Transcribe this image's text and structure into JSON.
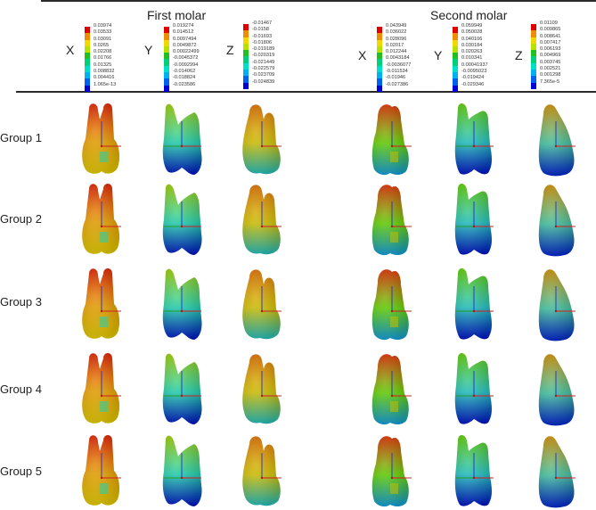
{
  "header": {
    "first_molar": "First molar",
    "second_molar": "Second molar"
  },
  "axes": [
    "X",
    "Y",
    "Z"
  ],
  "legends": {
    "first_molar": {
      "X": [
        "0.03974",
        "0.03533",
        "0.03091",
        "0.0265",
        "0.02208",
        "0.01766",
        "0.01325",
        "0.008832",
        "0.004416",
        "1.065e-13"
      ],
      "Y": [
        "0.019274",
        "0.014512",
        "0.0097494",
        "0.0049872",
        "0.00022499",
        "-0.0045372",
        "-0.0092994",
        "-0.014062",
        "-0.018824",
        "-0.023586"
      ],
      "Z": [
        "-0.01467",
        "-0.0158",
        "-0.01693",
        "-0.01806",
        "-0.019189",
        "-0.020319",
        "-0.021449",
        "-0.022579",
        "-0.023709",
        "-0.024839"
      ]
    },
    "second_molar": {
      "X": [
        "0.043949",
        "0.036022",
        "0.028096",
        "0.02017",
        "0.012244",
        "0.0043184",
        "-0.0036077",
        "-0.011534",
        "-0.01946",
        "-0.027386"
      ],
      "Y": [
        "0.059949",
        "0.050028",
        "0.040106",
        "0.030184",
        "0.020263",
        "0.010341",
        "0.00041937",
        "-0.0095023",
        "-0.019424",
        "-0.029346"
      ],
      "Z": [
        "0.01109",
        "0.009865",
        "0.008641",
        "0.007417",
        "0.006193",
        "0.004969",
        "0.003745",
        "0.002521",
        "0.001298",
        "7.365e-5"
      ]
    },
    "colors": [
      "#e00000",
      "#f08c00",
      "#f0d800",
      "#b8e000",
      "#20c020",
      "#00d07a",
      "#00e0c8",
      "#00b0f0",
      "#0060f0",
      "#0000d8"
    ]
  },
  "groups": [
    {
      "label": "Group 1"
    },
    {
      "label": "Group 2"
    },
    {
      "label": "Group 3"
    },
    {
      "label": "Group 4"
    },
    {
      "label": "Group 5"
    }
  ],
  "tooth_views": {
    "first_molar": {
      "X": {
        "top": "#e02000",
        "mid": "#e8a000",
        "bottom": "#e8d000",
        "accent": "#20d0b0"
      },
      "Y": {
        "top": "#a0d000",
        "mid": "#20d0b0",
        "bottom": "#0010c8",
        "accent": "#e03000"
      },
      "Z": {
        "top": "#e07000",
        "mid": "#d0c000",
        "bottom": "#20c0c0",
        "accent": "#20d0a0"
      }
    },
    "second_molar": {
      "X": {
        "top": "#e03000",
        "mid": "#60d000",
        "bottom": "#10a0e0",
        "accent": "#c0c000"
      },
      "Y": {
        "top": "#60d000",
        "mid": "#20c0c0",
        "bottom": "#0010c8",
        "accent": "#c0c000"
      },
      "Z": {
        "top": "#d09000",
        "mid": "#40c0a0",
        "bottom": "#0020d0",
        "accent": "#d03000"
      }
    }
  }
}
